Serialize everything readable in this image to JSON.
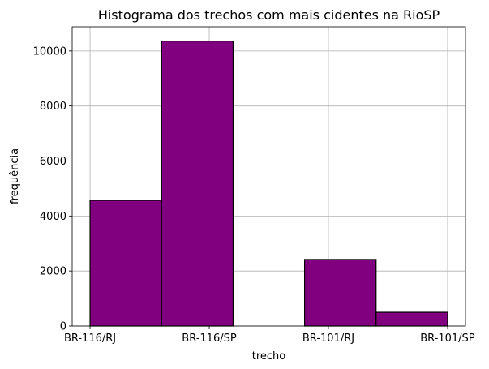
{
  "chart_data": {
    "type": "bar",
    "title": "Histograma dos trechos com mais cidentes na RioSP",
    "xlabel": "trecho",
    "ylabel": "frequência",
    "categories": [
      "BR-116/RJ",
      "BR-116/SP",
      "BR-101/RJ",
      "BR-101/SP"
    ],
    "bins": [
      {
        "start": 0,
        "end": 0.6,
        "count": 4570
      },
      {
        "start": 0.6,
        "end": 1.2,
        "count": 10360
      },
      {
        "start": 1.2,
        "end": 1.8,
        "count": 0
      },
      {
        "start": 1.8,
        "end": 2.4,
        "count": 2420
      },
      {
        "start": 2.4,
        "end": 3.0,
        "count": 500
      }
    ],
    "xlim": [
      -0.15,
      3.15
    ],
    "ylim": [
      0,
      10880
    ],
    "yticks": [
      0,
      2000,
      4000,
      6000,
      8000,
      10000
    ],
    "ytick_labels": [
      "0",
      "2000",
      "4000",
      "6000",
      "8000",
      "10000"
    ],
    "grid": true,
    "bar_color": "#800080",
    "edge_color": "#000000"
  }
}
